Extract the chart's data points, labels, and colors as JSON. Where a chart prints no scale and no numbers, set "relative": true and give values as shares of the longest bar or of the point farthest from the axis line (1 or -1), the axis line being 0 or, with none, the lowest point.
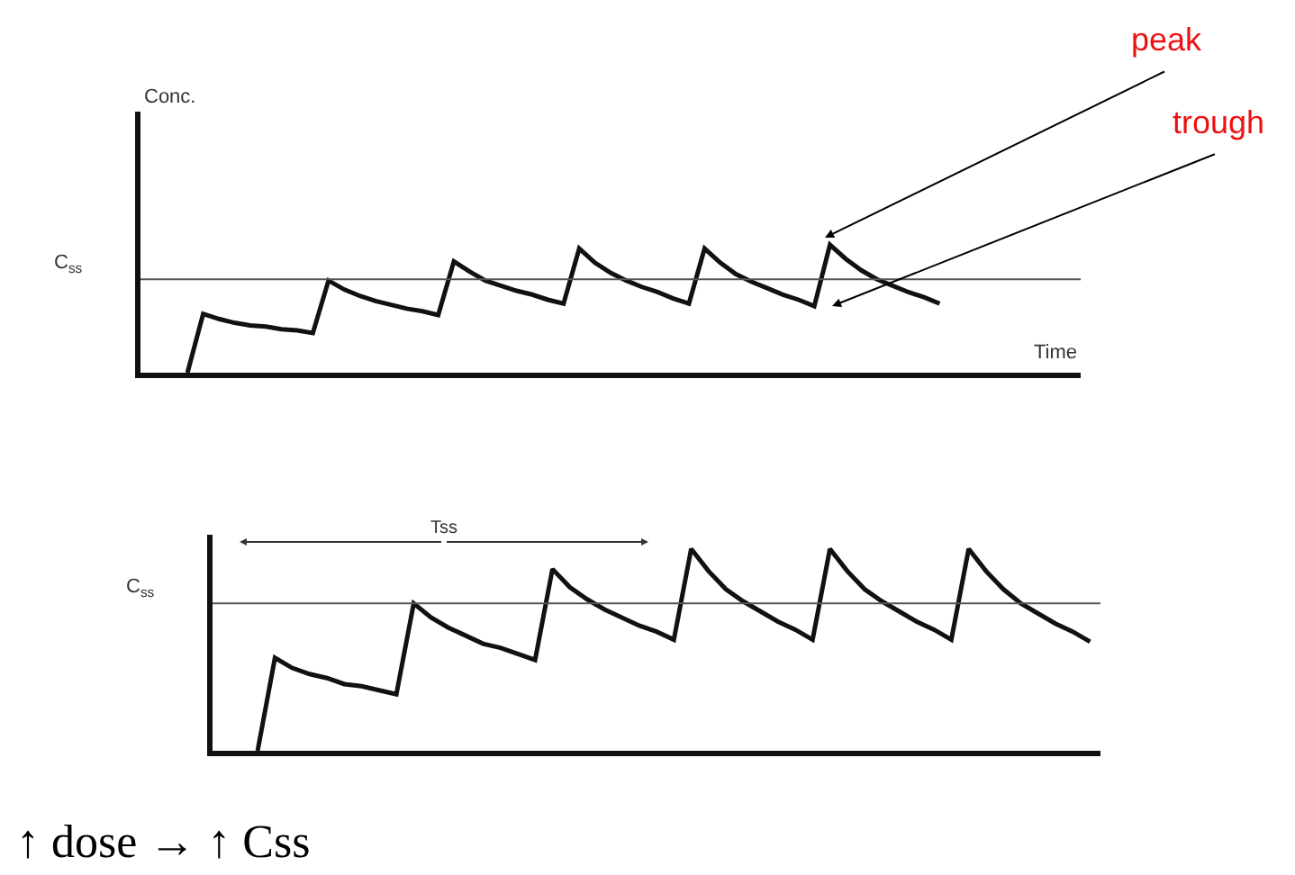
{
  "chart_data": [
    {
      "type": "line",
      "relative": true,
      "ylabel": "Conc.",
      "xlabel": "Time",
      "marker": "none",
      "line_style": "solid",
      "categories": [
        null,
        null,
        null,
        null,
        null,
        null,
        null,
        null,
        null,
        null,
        null,
        null,
        null,
        null,
        null,
        null,
        null,
        null,
        null,
        null,
        null,
        null,
        null,
        null,
        null,
        null,
        null,
        null,
        null,
        null,
        null,
        null,
        null,
        null,
        null,
        null,
        null,
        null,
        null,
        null,
        null,
        null,
        null,
        null,
        null,
        null,
        null,
        null,
        null
      ],
      "series": [
        {
          "color": "#111111",
          "values": [
            0,
            0.46,
            0.42,
            0.39,
            0.37,
            0.36,
            0.34,
            0.33,
            0.31,
            0.72,
            0.65,
            0.6,
            0.56,
            0.53,
            0.5,
            0.48,
            0.45,
            0.87,
            0.79,
            0.72,
            0.68,
            0.64,
            0.61,
            0.57,
            0.54,
            0.97,
            0.86,
            0.78,
            0.72,
            0.67,
            0.63,
            0.58,
            0.54,
            0.97,
            0.86,
            0.77,
            0.71,
            0.66,
            0.61,
            0.57,
            0.52,
            1,
            0.89,
            0.8,
            0.73,
            0.68,
            0.63,
            0.59,
            0.54
          ]
        }
      ],
      "ref_lines": [
        {
          "axis": "y",
          "value": 0.73,
          "label": "C$_{ss}$",
          "color": "#555555",
          "line_style": "solid"
        }
      ],
      "annotations": [
        "peak",
        "trough"
      ]
    },
    {
      "type": "line",
      "relative": true,
      "marker": "none",
      "line_style": "solid",
      "categories": [
        null,
        null,
        null,
        null,
        null,
        null,
        null,
        null,
        null,
        null,
        null,
        null,
        null,
        null,
        null,
        null,
        null,
        null,
        null,
        null,
        null,
        null,
        null,
        null,
        null,
        null,
        null,
        null,
        null,
        null,
        null,
        null,
        null,
        null,
        null,
        null,
        null,
        null,
        null,
        null,
        null,
        null,
        null,
        null,
        null,
        null,
        null,
        null,
        null
      ],
      "series": [
        {
          "color": "#111111",
          "values": [
            0,
            0.46,
            0.41,
            0.38,
            0.36,
            0.33,
            0.32,
            0.3,
            0.28,
            0.73,
            0.66,
            0.61,
            0.57,
            0.53,
            0.51,
            0.48,
            0.45,
            0.9,
            0.81,
            0.75,
            0.7,
            0.66,
            0.62,
            0.59,
            0.55,
            1,
            0.89,
            0.8,
            0.74,
            0.69,
            0.64,
            0.6,
            0.55,
            1,
            0.89,
            0.8,
            0.74,
            0.69,
            0.64,
            0.6,
            0.55,
            1,
            0.89,
            0.8,
            0.73,
            0.68,
            0.63,
            0.59,
            0.54
          ]
        }
      ],
      "ref_lines": [
        {
          "axis": "y",
          "value": 0.73,
          "label": "C$_{ss}$",
          "color": "#555555",
          "line_style": "solid"
        }
      ],
      "annotations": [
        "Tss",
        "↑ dose → ↑ Css"
      ]
    }
  ]
}
